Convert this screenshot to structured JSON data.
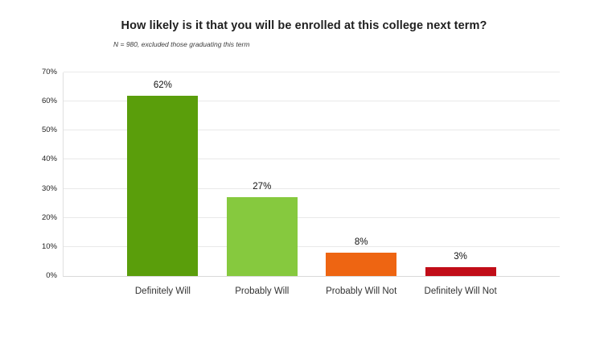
{
  "chart_data": {
    "type": "bar",
    "title": "How likely is it that you will be enrolled at this college next term?",
    "subtitle": "N = 980, excluded those graduating this term",
    "categories": [
      "Definitely Will",
      "Probably Will",
      "Probably Will Not",
      "Definitely Will Not"
    ],
    "values": [
      62,
      27,
      8,
      3
    ],
    "value_labels": [
      "62%",
      "27%",
      "8%",
      "3%"
    ],
    "bar_colors": [
      "#5a9e0b",
      "#86c93e",
      "#ee6512",
      "#c10d18"
    ],
    "xlabel": "",
    "ylabel": "",
    "ylim": [
      0,
      70
    ],
    "ytick_step": 10,
    "ytick_labels": [
      "0%",
      "10%",
      "20%",
      "30%",
      "40%",
      "50%",
      "60%",
      "70%"
    ],
    "grid": true,
    "legend_position": "none"
  },
  "colors": {
    "background": "#ffffff",
    "gridline": "#e9e9e9",
    "axis_left": "#e0e0e0",
    "axis_bottom": "#d9d9d9",
    "title_text": "#1f1f1f",
    "tick_text": "#222222"
  }
}
